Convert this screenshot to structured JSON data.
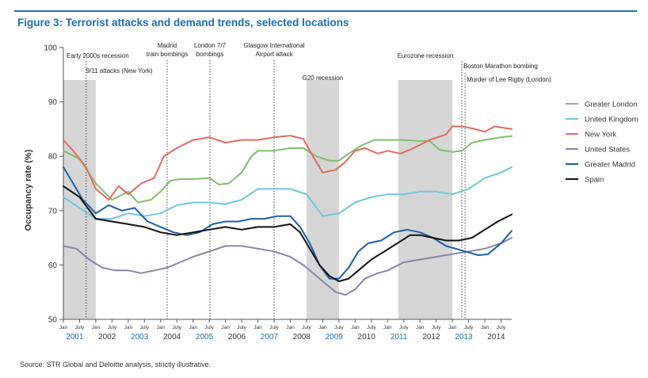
{
  "header": {
    "title": "Figure 3: Terrorist attacks and demand trends, selected locations"
  },
  "footer": {
    "source": "Source: STR Global and Deloitte analysis, strictly illustrative."
  },
  "chart_data": {
    "type": "line",
    "title": "Figure 3: Terrorist attacks and demand trends, selected locations",
    "ylabel": "Occupancy rate (%)",
    "xlabel": "",
    "ylim": [
      50,
      100
    ],
    "yticks": [
      50,
      60,
      70,
      80,
      90,
      100
    ],
    "xlim": [
      2001.0,
      2014.83
    ],
    "x_month_labels": [
      "Jan",
      "July"
    ],
    "x_years": [
      {
        "label": "2001",
        "highlight": true
      },
      {
        "label": "2002",
        "highlight": false
      },
      {
        "label": "2003",
        "highlight": true
      },
      {
        "label": "2004",
        "highlight": false
      },
      {
        "label": "2005",
        "highlight": true
      },
      {
        "label": "2006",
        "highlight": false
      },
      {
        "label": "2007",
        "highlight": true
      },
      {
        "label": "2008",
        "highlight": false
      },
      {
        "label": "2009",
        "highlight": true
      },
      {
        "label": "2010",
        "highlight": false
      },
      {
        "label": "2011",
        "highlight": true
      },
      {
        "label": "2012",
        "highlight": false
      },
      {
        "label": "2013",
        "highlight": true
      },
      {
        "label": "2014",
        "highlight": false
      }
    ],
    "shaded_periods": [
      {
        "label": "Early 2000s recession",
        "start": 2001.0,
        "end": 2002.0
      },
      {
        "label": "G20 recession",
        "start": 2008.5,
        "end": 2009.5
      },
      {
        "label": "Eurozone recession",
        "start": 2011.33,
        "end": 2013.0
      }
    ],
    "events": [
      {
        "label": "9/11 attacks (New York)",
        "x": 2001.7
      },
      {
        "label": "Madrid train bombings",
        "x": 2004.2
      },
      {
        "label": "London 7/7 bombings",
        "x": 2005.52
      },
      {
        "label": "Glasgow International Airport attack",
        "x": 2007.5
      },
      {
        "label": "Boston Marathon bombing",
        "x": 2013.29
      },
      {
        "label": "Murder of Lee Rigby (London)",
        "x": 2013.39
      }
    ],
    "legend_position": "right",
    "series": [
      {
        "name": "Greater London",
        "color": "#7dbf6e",
        "x": [
          2001.0,
          2001.5,
          2002.0,
          2002.5,
          2003.0,
          2003.3,
          2003.7,
          2004.0,
          2004.3,
          2004.6,
          2005.0,
          2005.5,
          2005.8,
          2006.1,
          2006.5,
          2006.8,
          2007.0,
          2007.5,
          2008.0,
          2008.4,
          2008.8,
          2009.2,
          2009.5,
          2009.8,
          2010.2,
          2010.6,
          2011.0,
          2011.5,
          2012.0,
          2012.3,
          2012.6,
          2013.0,
          2013.3,
          2013.6,
          2014.0,
          2014.5,
          2014.83
        ],
        "values": [
          81,
          79.5,
          75,
          72,
          73.5,
          71.5,
          72,
          73.5,
          75.5,
          75.8,
          75.8,
          76,
          74.8,
          75,
          77,
          80,
          81,
          81,
          81.5,
          81.5,
          80,
          79.2,
          79.2,
          80.5,
          82,
          83,
          83,
          83,
          82.8,
          82.8,
          81.2,
          80.8,
          81,
          82.5,
          83,
          83.5,
          83.7
        ]
      },
      {
        "name": "United Kingdom",
        "color": "#6ec6dd",
        "x": [
          2001.0,
          2001.5,
          2002.0,
          2002.5,
          2003.0,
          2003.5,
          2004.0,
          2004.5,
          2005.0,
          2005.5,
          2006.0,
          2006.5,
          2007.0,
          2007.5,
          2008.0,
          2008.5,
          2009.0,
          2009.5,
          2010.0,
          2010.5,
          2011.0,
          2011.5,
          2012.0,
          2012.5,
          2013.0,
          2013.5,
          2014.0,
          2014.5,
          2014.83
        ],
        "values": [
          72.5,
          70.5,
          68.5,
          68.5,
          69.5,
          69,
          69.5,
          71,
          71.5,
          71.5,
          71.2,
          72,
          74,
          74,
          74,
          73,
          69,
          69.5,
          71.5,
          72.5,
          73,
          73,
          73.5,
          73.5,
          73,
          74,
          76,
          77,
          78
        ]
      },
      {
        "name": "New York",
        "color": "#e06a5e",
        "x": [
          2001.0,
          2001.3,
          2001.7,
          2002.0,
          2002.4,
          2002.7,
          2003.0,
          2003.4,
          2003.8,
          2004.1,
          2004.5,
          2005.0,
          2005.5,
          2006.0,
          2006.5,
          2007.0,
          2007.5,
          2008.0,
          2008.4,
          2008.7,
          2009.0,
          2009.4,
          2009.7,
          2010.0,
          2010.3,
          2010.7,
          2011.0,
          2011.4,
          2011.8,
          2012.3,
          2012.8,
          2013.0,
          2013.3,
          2013.7,
          2014.0,
          2014.3,
          2014.83
        ],
        "values": [
          83,
          81,
          78,
          74,
          72,
          74.5,
          73,
          75,
          76,
          80,
          81.5,
          83,
          83.5,
          82.5,
          83,
          83,
          83.5,
          83.8,
          83.2,
          80,
          77,
          77.5,
          79,
          81,
          81.5,
          80.5,
          81,
          80.5,
          81.5,
          83,
          84,
          85.5,
          85.5,
          85,
          84.5,
          85.5,
          85
        ]
      },
      {
        "name": "United States",
        "color": "#8a84a6",
        "x": [
          2001.0,
          2001.4,
          2001.8,
          2002.2,
          2002.6,
          2003.0,
          2003.4,
          2003.8,
          2004.2,
          2004.6,
          2005.0,
          2005.5,
          2006.0,
          2006.5,
          2007.0,
          2007.5,
          2008.0,
          2008.4,
          2008.8,
          2009.1,
          2009.4,
          2009.7,
          2010.0,
          2010.3,
          2010.7,
          2011.0,
          2011.5,
          2012.0,
          2012.5,
          2013.0,
          2013.5,
          2014.0,
          2014.5,
          2014.83
        ],
        "values": [
          63.5,
          63,
          61,
          59.5,
          59,
          59,
          58.5,
          59,
          59.5,
          60.5,
          61.5,
          62.5,
          63.5,
          63.5,
          63,
          62.5,
          61.5,
          60,
          58,
          56.5,
          55,
          54.5,
          55.5,
          57.5,
          58.5,
          59,
          60.5,
          61,
          61.5,
          62,
          62.5,
          63,
          64,
          65
        ]
      },
      {
        "name": "Greater Madrid",
        "color": "#1c5ea6",
        "x": [
          2001.0,
          2001.3,
          2001.6,
          2002.0,
          2002.4,
          2002.8,
          2003.2,
          2003.6,
          2004.0,
          2004.4,
          2004.8,
          2005.2,
          2005.6,
          2006.0,
          2006.4,
          2006.8,
          2007.2,
          2007.6,
          2008.0,
          2008.3,
          2008.6,
          2008.9,
          2009.2,
          2009.5,
          2009.8,
          2010.1,
          2010.4,
          2010.8,
          2011.2,
          2011.6,
          2012.0,
          2012.4,
          2012.8,
          2013.1,
          2013.4,
          2013.8,
          2014.1,
          2014.5,
          2014.83
        ],
        "values": [
          78,
          75,
          72,
          69.5,
          71,
          70,
          70.5,
          68,
          67,
          66,
          65.5,
          66,
          67.5,
          68,
          68,
          68.5,
          68.5,
          69,
          69,
          67,
          64,
          60,
          57.5,
          57.5,
          59.5,
          62.5,
          64,
          64.5,
          66,
          66.5,
          66,
          65,
          63.5,
          63,
          62.5,
          61.8,
          62,
          64,
          66.3
        ]
      },
      {
        "name": "Spain",
        "color": "#111111",
        "x": [
          2001.0,
          2001.5,
          2002.0,
          2002.5,
          2003.0,
          2003.5,
          2004.0,
          2004.5,
          2005.0,
          2005.5,
          2006.0,
          2006.5,
          2007.0,
          2007.5,
          2008.0,
          2008.3,
          2008.6,
          2008.9,
          2009.2,
          2009.5,
          2009.8,
          2010.1,
          2010.5,
          2010.9,
          2011.3,
          2011.7,
          2012.0,
          2012.4,
          2012.8,
          2013.2,
          2013.6,
          2014.0,
          2014.4,
          2014.83
        ],
        "values": [
          74.5,
          72.5,
          68.5,
          68,
          67.5,
          67,
          66,
          65.5,
          66,
          66.5,
          67,
          66.5,
          67,
          67,
          67.5,
          66,
          63,
          60,
          58,
          57,
          57.5,
          59,
          61,
          62.5,
          64,
          65.5,
          65.5,
          65,
          64.5,
          64.5,
          65,
          66.5,
          68,
          69.3
        ]
      }
    ]
  }
}
